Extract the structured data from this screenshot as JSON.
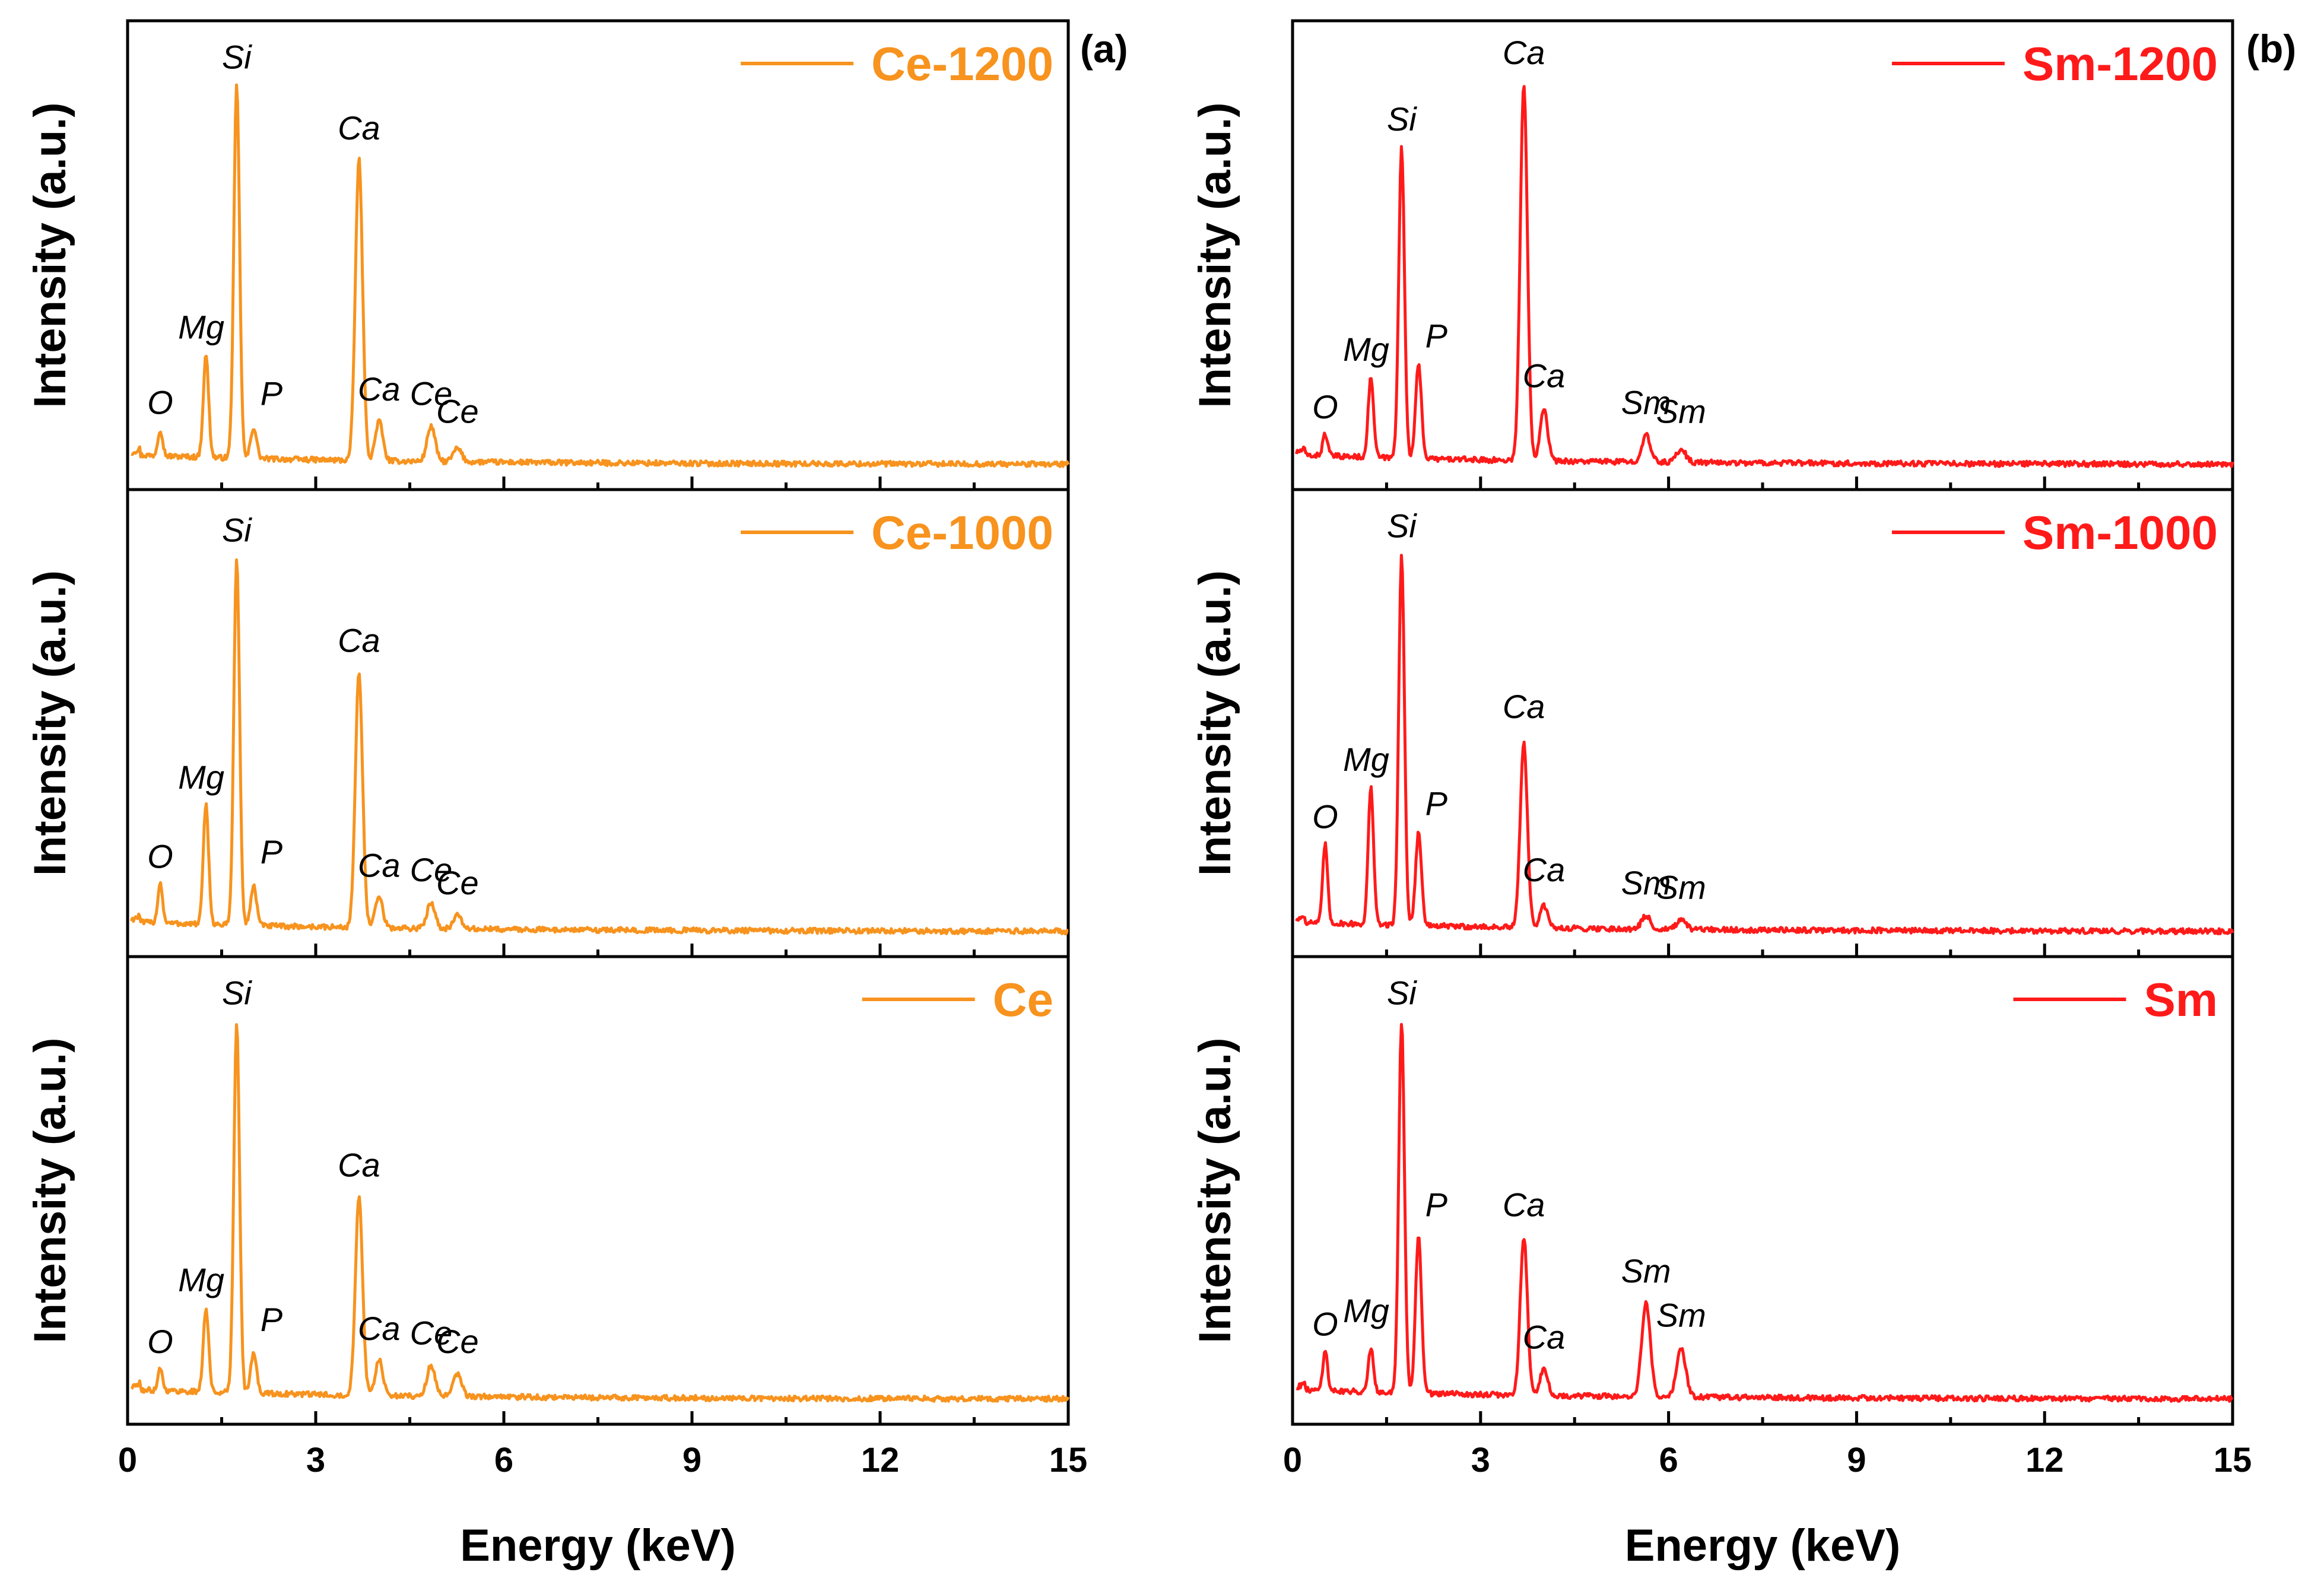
{
  "figure": {
    "panel_tags": [
      "(a)",
      "(b)"
    ]
  },
  "chart_data": [
    {
      "type": "line",
      "panel": "(a)",
      "xlabel": "Energy (keV)",
      "xlim": [
        0,
        15
      ],
      "xticks": [
        0,
        3,
        6,
        9,
        12,
        15
      ],
      "xtick_labels": [
        "0",
        "3",
        "6",
        "9",
        "12",
        "15"
      ],
      "subplots": [
        {
          "name": "Ce-1200",
          "color": "#f7931e",
          "ylabel": "Intensity (a.u.)",
          "ylim": [
            0,
            100
          ],
          "peaks": [
            {
              "label": "O",
              "x": 0.52,
              "height": 6,
              "label_y": 12
            },
            {
              "label": "Mg",
              "x": 1.25,
              "height": 23,
              "label_y": 29
            },
            {
              "label": "Si",
              "x": 1.74,
              "height": 84,
              "label_y": 90
            },
            {
              "label": "P",
              "x": 2.01,
              "height": 7,
              "label_y": 14
            },
            {
              "label": "Ca",
              "x": 3.69,
              "height": 68,
              "label_y": 74
            },
            {
              "label": "Ca",
              "x": 4.01,
              "height": 9,
              "label_y": 15
            },
            {
              "label": "Ce",
              "x": 4.84,
              "height": 8,
              "label_y": 14
            },
            {
              "label": "Ce",
              "x": 5.26,
              "height": 3,
              "label_y": 10
            }
          ]
        },
        {
          "name": "Ce-1000",
          "color": "#f7931e",
          "ylabel": "Intensity (a.u.)",
          "ylim": [
            0,
            100
          ],
          "peaks": [
            {
              "label": "O",
              "x": 0.52,
              "height": 9,
              "label_y": 15
            },
            {
              "label": "Mg",
              "x": 1.25,
              "height": 27,
              "label_y": 33
            },
            {
              "label": "Si",
              "x": 1.74,
              "height": 83,
              "label_y": 89
            },
            {
              "label": "P",
              "x": 2.01,
              "height": 9,
              "label_y": 16
            },
            {
              "label": "Ca",
              "x": 3.69,
              "height": 58,
              "label_y": 64
            },
            {
              "label": "Ca",
              "x": 4.01,
              "height": 7,
              "label_y": 13
            },
            {
              "label": "Ce",
              "x": 4.84,
              "height": 6,
              "label_y": 12
            },
            {
              "label": "Ce",
              "x": 5.26,
              "height": 3,
              "label_y": 9
            }
          ]
        },
        {
          "name": "Ce",
          "color": "#f7931e",
          "ylabel": "Intensity (a.u.)",
          "ylim": [
            0,
            100
          ],
          "peaks": [
            {
              "label": "O",
              "x": 0.52,
              "height": 5,
              "label_y": 11
            },
            {
              "label": "Mg",
              "x": 1.25,
              "height": 19,
              "label_y": 25
            },
            {
              "label": "Si",
              "x": 1.74,
              "height": 84,
              "label_y": 90
            },
            {
              "label": "P",
              "x": 2.01,
              "height": 9,
              "label_y": 16
            },
            {
              "label": "Ca",
              "x": 3.69,
              "height": 45,
              "label_y": 51
            },
            {
              "label": "Ca",
              "x": 4.01,
              "height": 8,
              "label_y": 14
            },
            {
              "label": "Ce",
              "x": 4.84,
              "height": 7,
              "label_y": 13
            },
            {
              "label": "Ce",
              "x": 5.26,
              "height": 5,
              "label_y": 11
            }
          ]
        }
      ]
    },
    {
      "type": "line",
      "panel": "(b)",
      "xlabel": "Energy (keV)",
      "xlim": [
        0,
        15
      ],
      "xticks": [
        0,
        3,
        6,
        9,
        12,
        15
      ],
      "xtick_labels": [
        "0",
        "3",
        "6",
        "9",
        "12",
        "15"
      ],
      "subplots": [
        {
          "name": "Sm-1200",
          "color": "#ff1a1a",
          "ylabel": "Intensity (a.u.)",
          "ylim": [
            0,
            100
          ],
          "peaks": [
            {
              "label": "O",
              "x": 0.52,
              "height": 5,
              "label_y": 11
            },
            {
              "label": "Mg",
              "x": 1.25,
              "height": 18,
              "label_y": 24
            },
            {
              "label": "Si",
              "x": 1.74,
              "height": 70,
              "label_y": 76
            },
            {
              "label": "P",
              "x": 2.01,
              "height": 21,
              "label_y": 27
            },
            {
              "label": "Ca",
              "x": 3.69,
              "height": 85,
              "label_y": 91
            },
            {
              "label": "Ca",
              "x": 4.01,
              "height": 12,
              "label_y": 18
            },
            {
              "label": "Sm",
              "x": 5.64,
              "height": 6,
              "label_y": 12
            },
            {
              "label": "Sm",
              "x": 6.2,
              "height": 3,
              "label_y": 10
            }
          ]
        },
        {
          "name": "Sm-1000",
          "color": "#ff1a1a",
          "ylabel": "Intensity (a.u.)",
          "ylim": [
            0,
            100
          ],
          "peaks": [
            {
              "label": "O",
              "x": 0.52,
              "height": 18,
              "label_y": 24
            },
            {
              "label": "Mg",
              "x": 1.25,
              "height": 31,
              "label_y": 37
            },
            {
              "label": "Si",
              "x": 1.74,
              "height": 84,
              "label_y": 90
            },
            {
              "label": "P",
              "x": 2.01,
              "height": 21,
              "label_y": 27
            },
            {
              "label": "Ca",
              "x": 3.69,
              "height": 42,
              "label_y": 49
            },
            {
              "label": "Ca",
              "x": 4.01,
              "height": 5,
              "label_y": 12
            },
            {
              "label": "Sm",
              "x": 5.64,
              "height": 3,
              "label_y": 9
            },
            {
              "label": "Sm",
              "x": 6.2,
              "height": 2,
              "label_y": 8
            }
          ]
        },
        {
          "name": "Sm",
          "color": "#ff1a1a",
          "ylabel": "Intensity (a.u.)",
          "ylim": [
            0,
            100
          ],
          "peaks": [
            {
              "label": "O",
              "x": 0.52,
              "height": 9,
              "label_y": 15
            },
            {
              "label": "Mg",
              "x": 1.25,
              "height": 10,
              "label_y": 18
            },
            {
              "label": "Si",
              "x": 1.74,
              "height": 84,
              "label_y": 90
            },
            {
              "label": "P",
              "x": 2.01,
              "height": 36,
              "label_y": 42
            },
            {
              "label": "Ca",
              "x": 3.69,
              "height": 36,
              "label_y": 42
            },
            {
              "label": "Ca",
              "x": 4.01,
              "height": 6,
              "label_y": 12
            },
            {
              "label": "Sm",
              "x": 5.64,
              "height": 21,
              "label_y": 27
            },
            {
              "label": "Sm",
              "x": 6.2,
              "height": 11,
              "label_y": 17
            }
          ]
        }
      ]
    }
  ]
}
